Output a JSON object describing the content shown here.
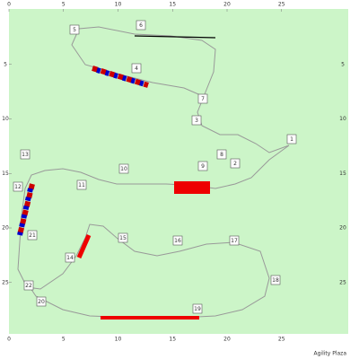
{
  "x_ticks": [
    0,
    5,
    10,
    15,
    20,
    25
  ],
  "y_ticks": [
    5,
    10,
    15,
    20,
    25
  ],
  "obstacles": [
    "1",
    "2",
    "3",
    "4",
    "5",
    "6",
    "7",
    "8",
    "9",
    "10",
    "11",
    "12",
    "13",
    "14",
    "15",
    "16",
    "17",
    "18",
    "19",
    "20",
    "21",
    "22"
  ],
  "footer": "Agility Plaza"
}
